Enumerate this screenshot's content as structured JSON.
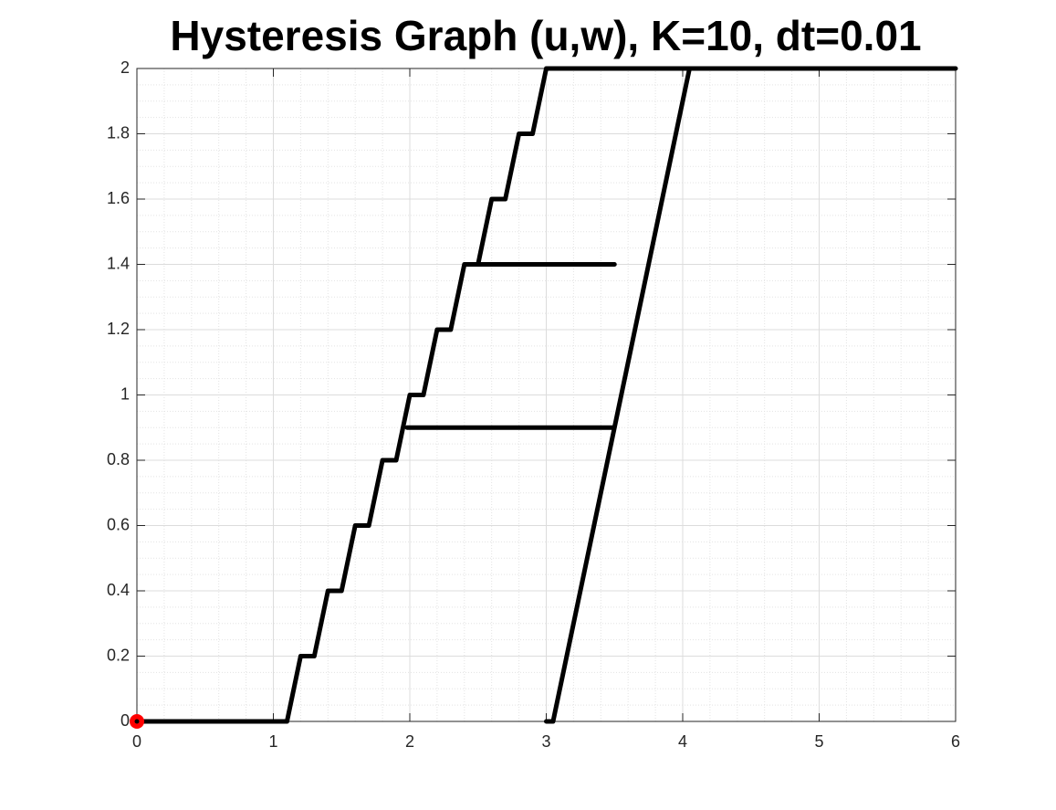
{
  "chart_data": {
    "type": "line",
    "title": "Hysteresis Graph (u,w), K=10, dt=0.01",
    "xlim": [
      0,
      6
    ],
    "ylim": [
      0,
      2
    ],
    "xticks": [
      0,
      1,
      2,
      3,
      4,
      5,
      6
    ],
    "yticks": [
      0,
      0.2,
      0.4,
      0.6,
      0.8,
      1,
      1.2,
      1.4,
      1.6,
      1.8,
      2
    ],
    "grid": true,
    "minor_grid": true,
    "series": [
      {
        "color": "#000000",
        "marker": "none",
        "x": [
          0,
          1.1,
          1.2,
          1.3,
          1.4,
          1.5,
          1.6,
          1.7,
          1.8,
          1.9,
          2.0,
          2.1,
          2.2,
          2.3,
          2.4,
          2.5,
          2.6,
          2.7,
          2.8,
          2.9,
          3.0,
          6,
          4.05,
          3.05,
          3.0,
          null,
          2.4,
          3.5,
          null,
          1.98,
          3.5
        ],
        "values": [
          0,
          0,
          0.2,
          0.2,
          0.4,
          0.4,
          0.6,
          0.6,
          0.8,
          0.8,
          1.0,
          1.0,
          1.2,
          1.2,
          1.4,
          1.4,
          1.6,
          1.6,
          1.8,
          1.8,
          2.0,
          2,
          2,
          0,
          0,
          null,
          1.4,
          1.4,
          null,
          0.9,
          0.9
        ]
      },
      {
        "color": "#ff0000",
        "marker": "circle",
        "x": [
          0
        ],
        "values": [
          0
        ]
      }
    ]
  }
}
